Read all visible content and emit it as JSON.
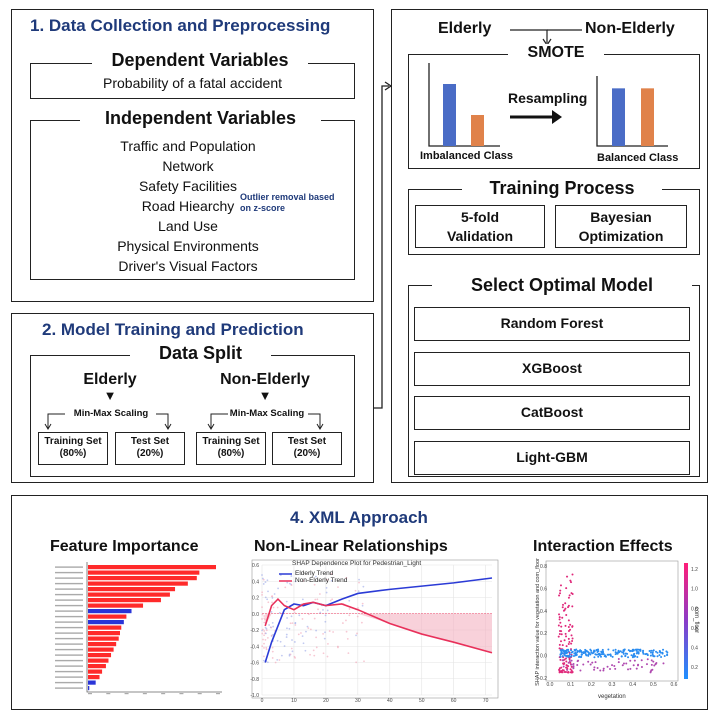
{
  "section1": {
    "title": "1. Data Collection and Preprocessing",
    "dependent_header": "Dependent Variables",
    "dependent_value": "Probability of a fatal accident",
    "independent_header": "Independent Variables",
    "independent_items": [
      "Traffic and Population",
      "Network",
      "Safety Facilities",
      "Road Hiearchy",
      "Land Use",
      "Physical Environments",
      "Driver's Visual Factors"
    ],
    "outlier_note_line1": "Outlier removal based",
    "outlier_note_line2": "on z-score"
  },
  "section2": {
    "title": "2. Model Training and Prediction",
    "split_header": "Data Split",
    "groups": [
      {
        "label": "Elderly",
        "scaling": "Min-Max Scaling",
        "train_l1": "Training Set",
        "train_l2": "(80%)",
        "test_l1": "Test Set",
        "test_l2": "(20%)"
      },
      {
        "label": "Non-Elderly",
        "scaling": "Min-Max Scaling",
        "train_l1": "Training Set",
        "train_l2": "(80%)",
        "test_l1": "Test Set",
        "test_l2": "(20%)"
      }
    ]
  },
  "smote": {
    "elderly_label": "Elderly",
    "non_elderly_label": "Non-Elderly",
    "title": "SMOTE",
    "resampling_label": "Resampling",
    "imbalanced_label": "Imbalanced Class",
    "balanced_label": "Balanced Class",
    "imbalanced_values": [
      1.0,
      0.5
    ],
    "balanced_values": [
      0.93,
      0.93
    ],
    "colors": {
      "blue": "#4a6cc6",
      "orange": "#e0824a"
    }
  },
  "training": {
    "header": "Training Process",
    "box1_l1": "5-fold",
    "box1_l2": "Validation",
    "box2_l1": "Bayesian",
    "box2_l2": "Optimization"
  },
  "models": {
    "header": "Select Optimal Model",
    "items": [
      "Random Forest",
      "XGBoost",
      "CatBoost",
      "Light-GBM"
    ]
  },
  "section4": {
    "title": "4. XML Approach",
    "feature_title": "Feature Importance",
    "nonlinear_title": "Non-Linear Relationships",
    "interaction_title": "Interaction Effects",
    "shap_plot_title": "SHAP Dependence Plot for Pedestrian_Light",
    "legend_elderly": "Elderly Trend",
    "legend_non_elderly": "Non-Elderly Trend",
    "interaction_xlabel": "vegetation",
    "interaction_ylabel": "SHAP interaction value for vegetation and com_floor",
    "interaction_colorbar_label": "com_floor"
  },
  "chart_data": [
    {
      "type": "bar",
      "orientation": "horizontal",
      "title": "Feature Importance",
      "values": [
        1.0,
        0.87,
        0.85,
        0.78,
        0.68,
        0.64,
        0.57,
        0.43,
        0.34,
        0.3,
        0.28,
        0.26,
        0.25,
        0.24,
        0.22,
        0.2,
        0.18,
        0.16,
        0.14,
        0.11,
        0.09,
        0.06,
        0.01
      ],
      "colors": [
        "#ff2a2a",
        "#ff2a2a",
        "#ff2a2a",
        "#ff2a2a",
        "#ff2a2a",
        "#ff2a2a",
        "#ff2a2a",
        "#ff2a2a",
        "#2a35d8",
        "#ff2a2a",
        "#2a35d8",
        "#ff2a2a",
        "#ff2a2a",
        "#ff2a2a",
        "#ff2a2a",
        "#ff2a2a",
        "#ff2a2a",
        "#ff2a2a",
        "#ff2a2a",
        "#ff2a2a",
        "#ff2a2a",
        "#2a35d8",
        "#2a35d8"
      ]
    },
    {
      "type": "line",
      "title": "SHAP Dependence Plot for Pedestrian_Light",
      "xlim": [
        0,
        72
      ],
      "ylim": [
        -1.0,
        0.6
      ],
      "xticks": [
        0,
        10,
        20,
        30,
        40,
        50,
        60,
        70
      ],
      "yticks": [
        -1.0,
        -0.8,
        -0.6,
        -0.4,
        -0.2,
        0.0,
        0.2,
        0.4,
        0.6
      ],
      "series": [
        {
          "name": "Elderly Trend",
          "color": "#2b3bd6",
          "x": [
            1,
            3,
            5,
            7,
            10,
            13,
            16,
            20,
            25,
            30,
            40,
            50,
            60,
            72
          ],
          "y": [
            -0.6,
            -0.35,
            -0.15,
            0.05,
            0.12,
            0.1,
            0.14,
            0.1,
            0.18,
            0.25,
            0.3,
            0.34,
            0.38,
            0.44
          ]
        },
        {
          "name": "Non-Elderly Trend",
          "color": "#e8305a",
          "x": [
            1,
            3,
            5,
            7,
            10,
            13,
            16,
            20,
            25,
            30,
            40,
            50,
            60,
            72
          ],
          "y": [
            -0.15,
            0.1,
            0.18,
            0.1,
            0.05,
            0.12,
            0.14,
            0.1,
            0.12,
            0.05,
            -0.12,
            -0.25,
            -0.35,
            -0.48
          ]
        }
      ]
    },
    {
      "type": "scatter",
      "title": "Interaction Effects",
      "xlabel": "vegetation",
      "xlim": [
        0.0,
        0.6
      ],
      "ylim": [
        -0.2,
        0.8
      ],
      "xticks": [
        0.0,
        0.1,
        0.2,
        0.3,
        0.4,
        0.5,
        0.6
      ],
      "yticks": [
        -0.2,
        0.0,
        0.2,
        0.4,
        0.6,
        0.8
      ],
      "colorbar_ticks": [
        0.2,
        0.4,
        0.6,
        0.8,
        1.0,
        1.2
      ]
    }
  ]
}
